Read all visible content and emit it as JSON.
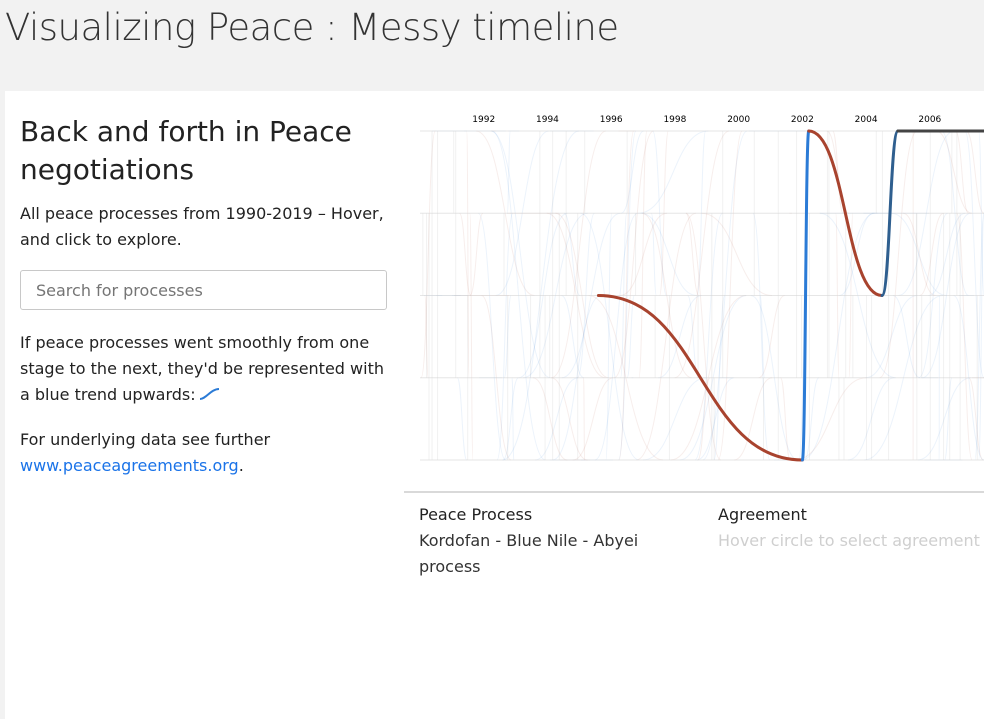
{
  "header": {
    "title": "Visualizing Peace : Messy timeline"
  },
  "sidebar": {
    "heading": "Back and forth in Peace negotiations",
    "intro": "All peace processes from 1990-2019 – Hover, and click to explore.",
    "search": {
      "placeholder": "Search for processes",
      "value": ""
    },
    "explanation": "If peace processes went smoothly from one stage to the next, they'd be represented with a blue trend upwards:",
    "data_note_prefix": "For underlying data see further",
    "data_link": "www.peaceagreements.org",
    "data_note_suffix": "."
  },
  "chart_data": {
    "type": "line",
    "title": "",
    "x_tick_labels": [
      "1992",
      "1994",
      "1996",
      "1998",
      "2000",
      "2002",
      "2004",
      "2006"
    ],
    "xlim": [
      1990,
      2007.7
    ],
    "stage_levels": 5,
    "highlighted_process": "Kordofan - Blue Nile - Abyei process",
    "highlighted_path": [
      {
        "from": 1995.6,
        "to": 2002.0,
        "stage_from": 2,
        "stage_to": 0,
        "color": "#a8432e"
      },
      {
        "from": 2002.0,
        "to": 2002.2,
        "stage_from": 0,
        "stage_to": 4,
        "color": "#2b7bd6"
      },
      {
        "from": 2002.2,
        "to": 2004.5,
        "stage_from": 4,
        "stage_to": 2,
        "color": "#a8432e"
      },
      {
        "from": 2004.5,
        "to": 2005.0,
        "stage_from": 2,
        "stage_to": 4,
        "color": "#2f5f8f"
      },
      {
        "from": 2005.0,
        "to": 2007.7,
        "stage_from": 4,
        "stage_to": 4,
        "color": "#444444"
      }
    ],
    "colors": {
      "forward": "#2b7bd6",
      "backward": "#a8432e"
    }
  },
  "info": {
    "process_label": "Peace Process",
    "process_value": "Kordofan - Blue Nile - Abyei process",
    "agreement_label": "Agreement",
    "agreement_placeholder": "Hover circle to select agreement"
  }
}
